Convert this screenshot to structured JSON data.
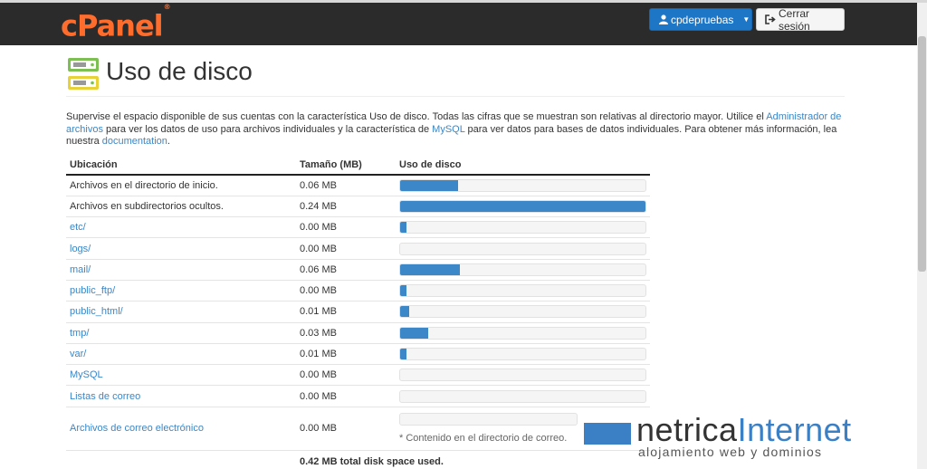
{
  "header": {
    "logo": "cPanel",
    "logo_mark": "®",
    "username": "cpdepruebas",
    "logout_label": "Cerrar sesión"
  },
  "page": {
    "title": "Uso de disco",
    "icon": "disk-usage-icon"
  },
  "intro": {
    "part1": "Supervise el espacio disponible de sus cuentas con la característica Uso de disco. Todas las cifras que se muestran son relativas al directorio mayor. Utilice el ",
    "link1": "Administrador de archivos",
    "part2": " para ver los datos de uso para archivos individuales y la característica de ",
    "link2": "MySQL",
    "part3": " para ver datos para bases de datos individuales. Para obtener más información, lea nuestra ",
    "link3": "documentation",
    "part4": "."
  },
  "table": {
    "headers": [
      "Ubicación",
      "Tamaño (MB)",
      "Uso de disco"
    ],
    "rows": [
      {
        "location": "Archivos en el directorio de inicio.",
        "size": "0.06 MB",
        "usage": 0.235,
        "link": false
      },
      {
        "location": "Archivos en subdirectorios ocultos.",
        "size": "0.24 MB",
        "usage": 1.0,
        "link": false
      },
      {
        "location": "etc/",
        "size": "0.00 MB",
        "usage": 0.025,
        "link": true
      },
      {
        "location": "logs/",
        "size": "0.00 MB",
        "usage": 0.0,
        "link": true
      },
      {
        "location": "mail/",
        "size": "0.06 MB",
        "usage": 0.245,
        "link": true
      },
      {
        "location": "public_ftp/",
        "size": "0.00 MB",
        "usage": 0.025,
        "link": true
      },
      {
        "location": "public_html/",
        "size": "0.01 MB",
        "usage": 0.037,
        "link": true
      },
      {
        "location": "tmp/",
        "size": "0.03 MB",
        "usage": 0.115,
        "link": true
      },
      {
        "location": "var/",
        "size": "0.01 MB",
        "usage": 0.025,
        "link": true
      },
      {
        "location": "MySQL",
        "size": "0.00 MB",
        "usage": 0.0,
        "link": true
      },
      {
        "location": "Listas de correo",
        "size": "0.00 MB",
        "usage": 0.0,
        "link": true
      }
    ],
    "mail_row": {
      "location": "Archivos de correo electrónico",
      "size": "0.00 MB",
      "usage": 0.0,
      "note": "* Contenido en el directorio de correo."
    },
    "total": "0.42 MB total disk space used."
  },
  "watermark": {
    "brand_a": "netrica",
    "brand_b": "Internet",
    "tagline": "alojamiento web y dominios"
  },
  "colors": {
    "accent": "#3b87c8",
    "logo": "#ff6c2c",
    "topbar": "#2b2b2b"
  }
}
